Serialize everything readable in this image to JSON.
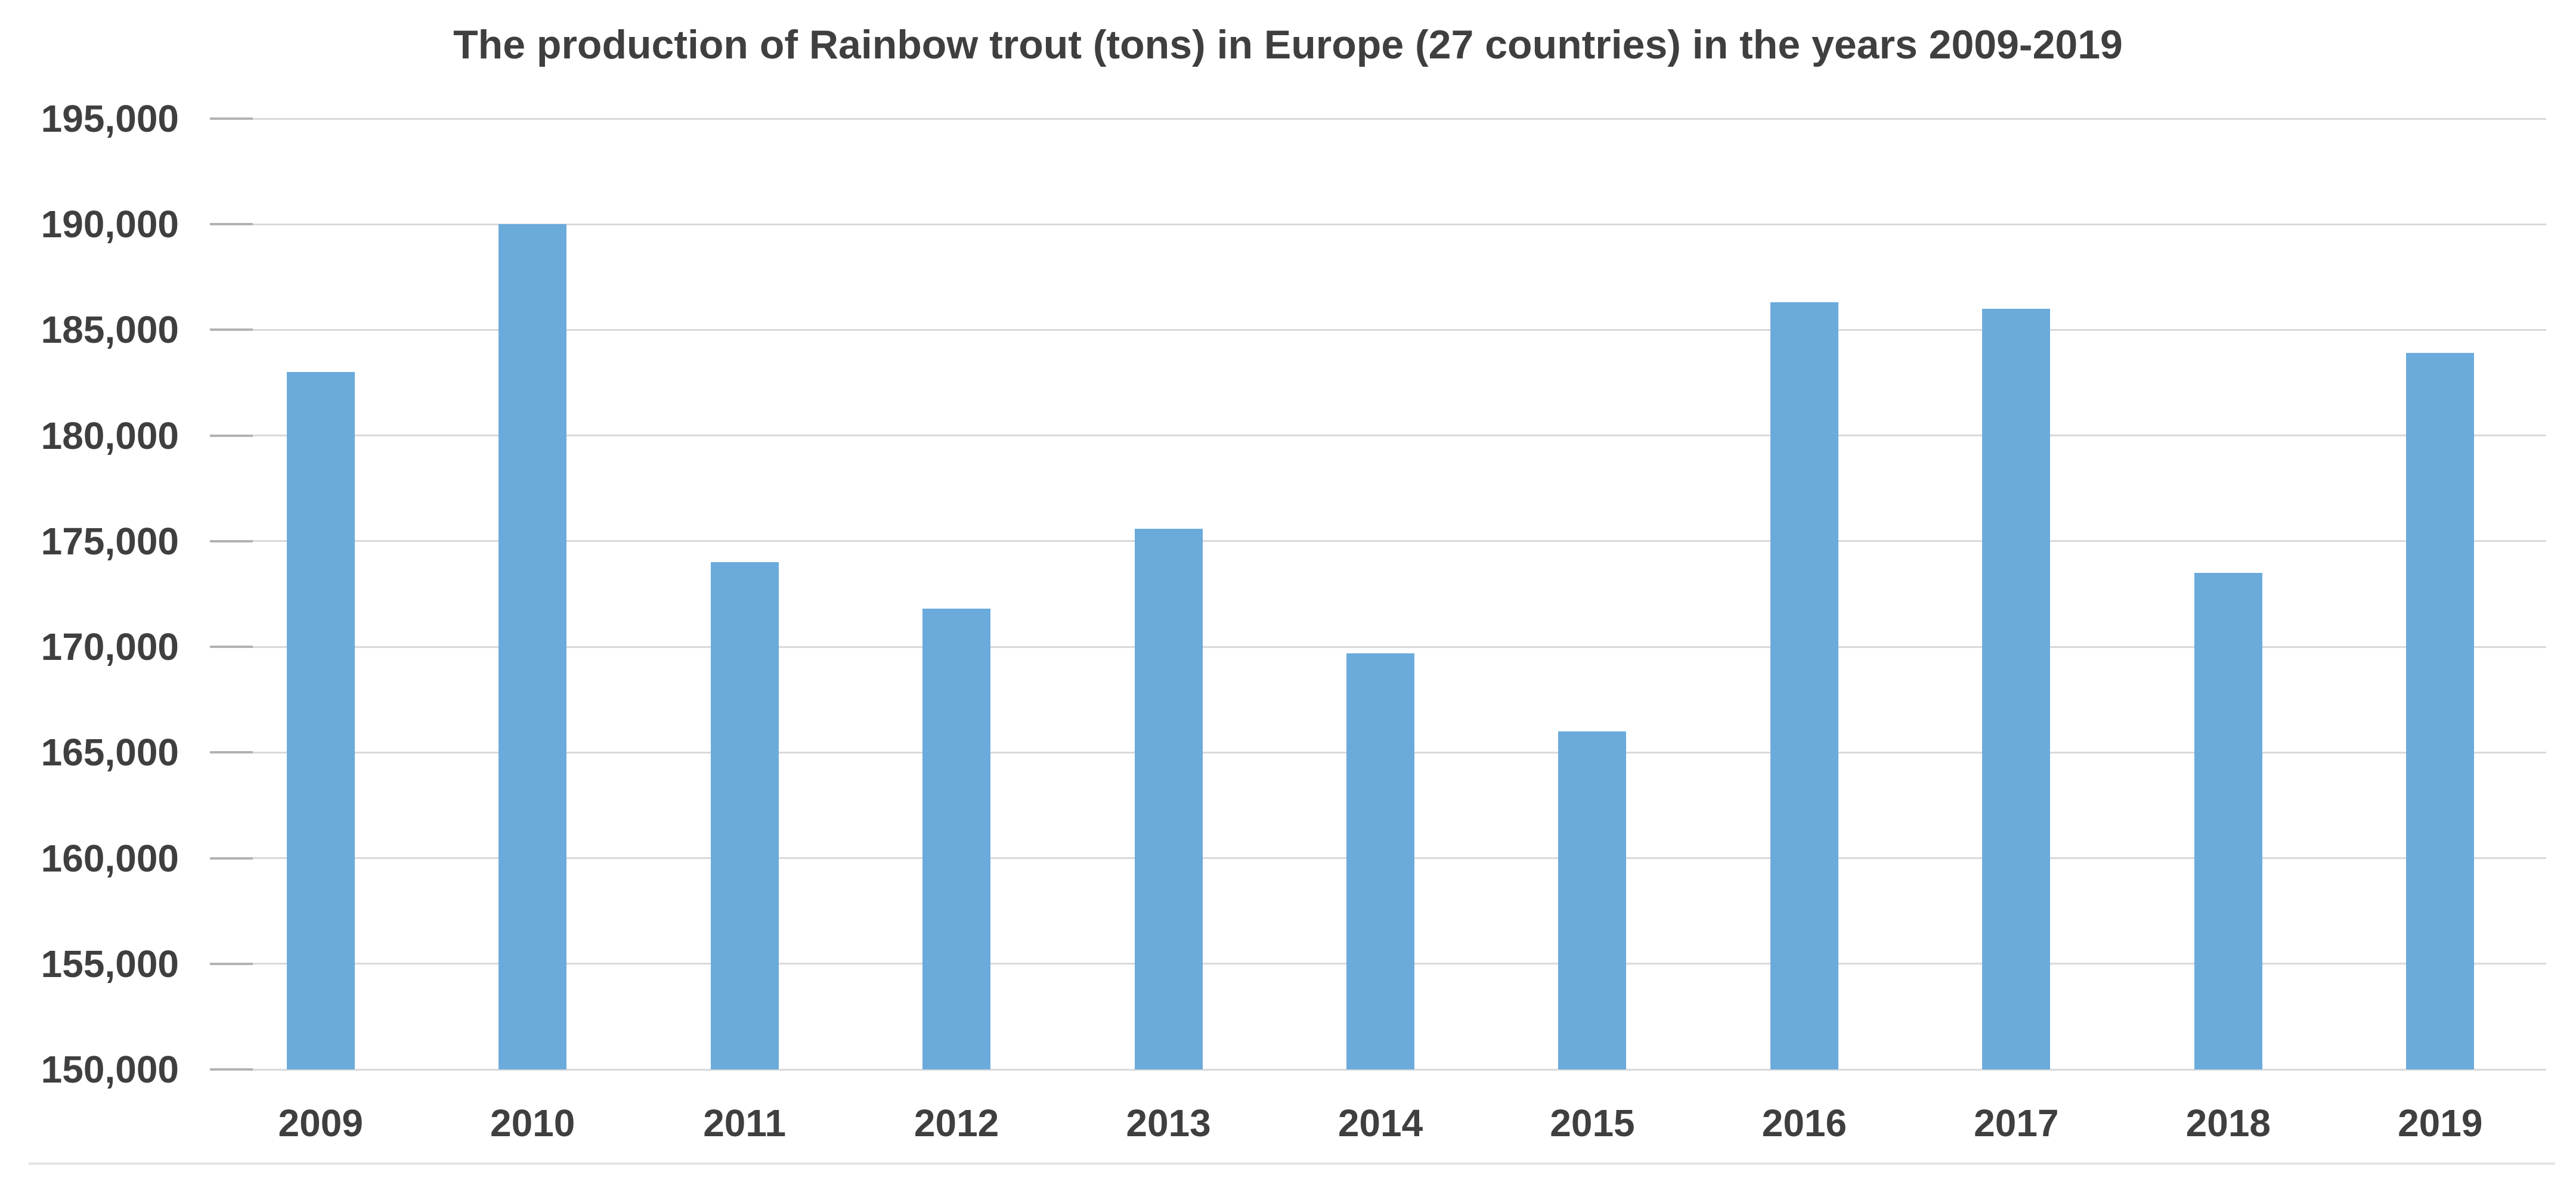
{
  "chart_data": {
    "type": "bar",
    "title": "The production of Rainbow trout (tons) in Europe (27 countries) in the years 2009-2019",
    "categories": [
      "2009",
      "2010",
      "2011",
      "2012",
      "2013",
      "2014",
      "2015",
      "2016",
      "2017",
      "2018",
      "2019"
    ],
    "values": [
      183000,
      190000,
      174000,
      171800,
      175600,
      169700,
      166000,
      186300,
      186000,
      173500,
      183900
    ],
    "xlabel": "",
    "ylabel": "",
    "ylim": [
      150000,
      195000
    ],
    "ytick_step": 5000,
    "ytick_labels": [
      "150,000",
      "155,000",
      "160,000",
      "165,000",
      "170,000",
      "175,000",
      "180,000",
      "185,000",
      "190,000",
      "195,000"
    ],
    "grid": true,
    "legend": false,
    "colors": {
      "bar": "#6babdc",
      "title_text": "#3f3f3f",
      "axis_text": "#3f3f3f",
      "gridline": "#d9d9d9",
      "tick": "#b2b2b2",
      "divider": "#e4e4e4",
      "background": "#ffffff"
    }
  }
}
